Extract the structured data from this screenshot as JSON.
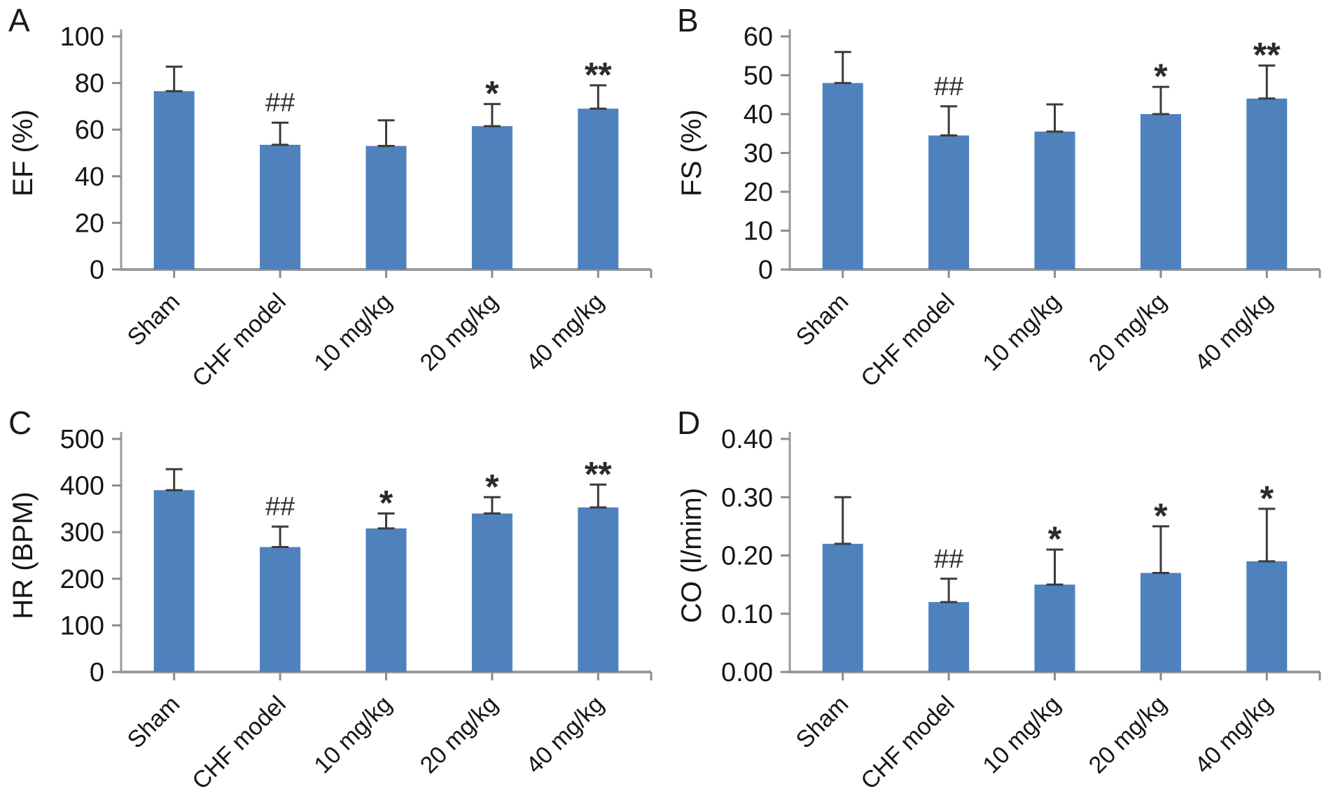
{
  "style": {
    "bar_color": "#4f81bd",
    "axis_color": "#9a9a9a",
    "tick_color": "#8c8c8c",
    "error_color": "#3b3b3b",
    "text_color": "#161616",
    "annotation_color": "#2b2b2b",
    "background": "#ffffff"
  },
  "chart_data": [
    {
      "type": "bar",
      "panel": "A",
      "title": "",
      "xlabel": "",
      "ylabel": "EF (%)",
      "categories": [
        "Sham",
        "CHF model",
        "10 mg/kg",
        "20 mg/kg",
        "40 mg/kg"
      ],
      "values": [
        76.5,
        53.5,
        53,
        61.5,
        69
      ],
      "error_tops": [
        87,
        63,
        64,
        71,
        79
      ],
      "annotations": [
        "",
        "##",
        "",
        "*",
        "**"
      ],
      "ylim": [
        0,
        100
      ],
      "ytick_labels": [
        "0",
        "20",
        "40",
        "60",
        "80",
        "100"
      ],
      "grid": false,
      "legend": null
    },
    {
      "type": "bar",
      "panel": "B",
      "title": "",
      "xlabel": "",
      "ylabel": "FS (%)",
      "categories": [
        "Sham",
        "CHF model",
        "10 mg/kg",
        "20 mg/kg",
        "40 mg/kg"
      ],
      "values": [
        48,
        34.5,
        35.5,
        40,
        44
      ],
      "error_tops": [
        56,
        42,
        42.5,
        47,
        52.5
      ],
      "annotations": [
        "",
        "##",
        "",
        "*",
        "**"
      ],
      "ylim": [
        0,
        60
      ],
      "ytick_labels": [
        "0",
        "10",
        "20",
        "30",
        "40",
        "50",
        "60"
      ],
      "grid": false,
      "legend": null
    },
    {
      "type": "bar",
      "panel": "C",
      "title": "",
      "xlabel": "",
      "ylabel": "HR (BPM)",
      "categories": [
        "Sham",
        "CHF model",
        "10 mg/kg",
        "20 mg/kg",
        "40 mg/kg"
      ],
      "values": [
        390,
        268,
        308,
        340,
        353
      ],
      "error_tops": [
        435,
        312,
        340,
        375,
        402
      ],
      "annotations": [
        "",
        "##",
        "*",
        "*",
        "**"
      ],
      "ylim": [
        0,
        500
      ],
      "ytick_labels": [
        "0",
        "100",
        "200",
        "300",
        "400",
        "500"
      ],
      "grid": false,
      "legend": null
    },
    {
      "type": "bar",
      "panel": "D",
      "title": "",
      "xlabel": "",
      "ylabel": "CO (l/mim)",
      "categories": [
        "Sham",
        "CHF model",
        "10 mg/kg",
        "20 mg/kg",
        "40 mg/kg"
      ],
      "values": [
        0.22,
        0.12,
        0.15,
        0.17,
        0.19
      ],
      "error_tops": [
        0.3,
        0.16,
        0.21,
        0.25,
        0.28
      ],
      "annotations": [
        "",
        "##",
        "*",
        "*",
        "*"
      ],
      "ylim": [
        0,
        0.4
      ],
      "ytick_labels": [
        "0.00",
        "0.10",
        "0.20",
        "0.30",
        "0.40"
      ],
      "grid": false,
      "legend": null
    }
  ]
}
